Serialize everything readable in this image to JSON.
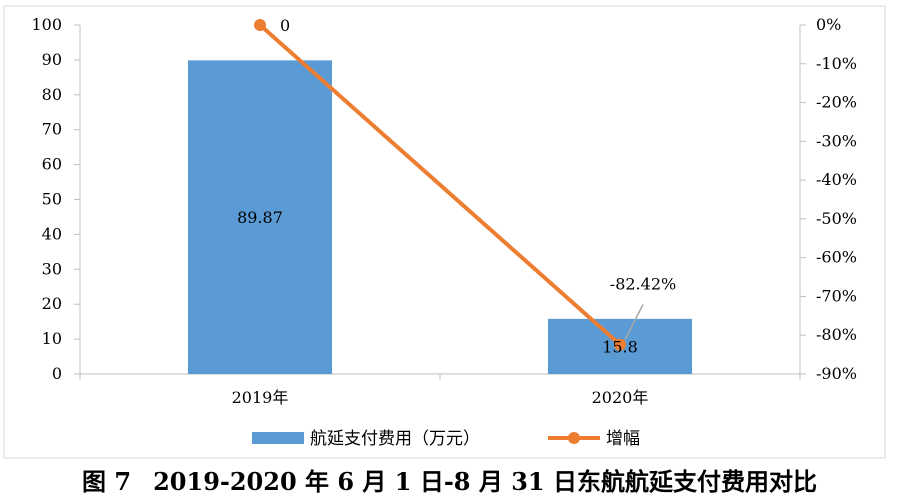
{
  "chart_data": {
    "type": "bar",
    "categories": [
      "2019年",
      "2020年"
    ],
    "series": [
      {
        "name": "航延支付费用（万元）",
        "type": "bar",
        "axis": "left",
        "values": [
          89.87,
          15.8
        ],
        "labels": [
          "89.87",
          "15.8"
        ],
        "color": "#5b9bd5"
      },
      {
        "name": "增幅",
        "type": "line",
        "axis": "right",
        "values": [
          0,
          -82.42
        ],
        "labels": [
          "0",
          "-82.42%"
        ],
        "color": "#ed7d31"
      }
    ],
    "y_left": {
      "lim": [
        0,
        100
      ],
      "ticks": [
        "0",
        "10",
        "20",
        "30",
        "40",
        "50",
        "60",
        "70",
        "80",
        "90",
        "100"
      ]
    },
    "y_right": {
      "lim": [
        -90,
        0
      ],
      "unit": "%",
      "ticks": [
        "-90%",
        "-80%",
        "-70%",
        "-60%",
        "-50%",
        "-40%",
        "-30%",
        "-20%",
        "-10%",
        "0%"
      ]
    },
    "grid": false,
    "legend_position": "bottom"
  },
  "caption": {
    "number": "图 7",
    "text": "2019-2020 年 6 月 1 日-8 月 31 日东航航延支付费用对比"
  }
}
